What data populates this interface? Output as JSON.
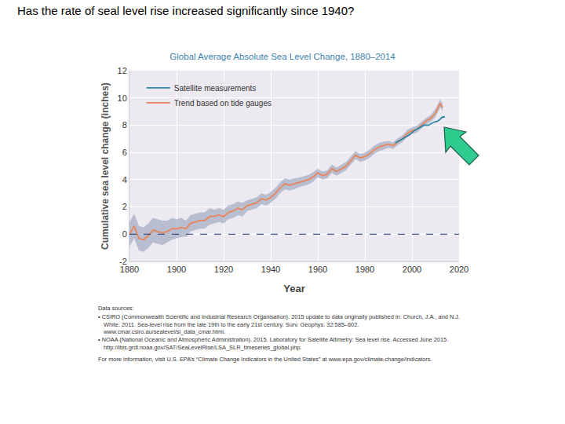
{
  "slide_title": "Has the rate of seal level rise increased significantly since 1940?",
  "chart_data": {
    "type": "line",
    "title": "Global Average Absolute Sea Level Change, 1880–2014",
    "x_label": "Year",
    "y_label": "Cumulative sea level change (inches)",
    "xlim": [
      1880,
      2020
    ],
    "xticks": [
      1880,
      1900,
      1920,
      1940,
      1960,
      1980,
      2000,
      2020
    ],
    "ylim": [
      -2,
      12
    ],
    "yticks": [
      -2,
      0,
      2,
      4,
      6,
      8,
      10,
      12
    ],
    "grid": true,
    "legend": "top left",
    "baseline": 0,
    "series": [
      {
        "name": "Trend based on tide gauges",
        "color": "#e8845a",
        "x": [
          1880,
          1882,
          1884,
          1886,
          1888,
          1890,
          1892,
          1894,
          1896,
          1898,
          1900,
          1902,
          1904,
          1906,
          1908,
          1910,
          1912,
          1914,
          1916,
          1918,
          1920,
          1922,
          1924,
          1926,
          1928,
          1930,
          1932,
          1934,
          1936,
          1938,
          1940,
          1942,
          1944,
          1946,
          1948,
          1950,
          1952,
          1954,
          1956,
          1958,
          1960,
          1962,
          1964,
          1966,
          1968,
          1970,
          1972,
          1974,
          1976,
          1978,
          1980,
          1982,
          1984,
          1986,
          1988,
          1990,
          1992,
          1994,
          1996,
          1998,
          2000,
          2002,
          2004,
          2006,
          2008,
          2010,
          2012,
          2013
        ],
        "values": [
          0.0,
          0.6,
          -0.3,
          -0.4,
          -0.1,
          0.3,
          0.2,
          0.1,
          0.2,
          0.4,
          0.4,
          0.5,
          0.4,
          0.8,
          0.9,
          1.0,
          1.0,
          1.3,
          1.3,
          1.4,
          1.3,
          1.6,
          1.7,
          1.9,
          1.8,
          2.1,
          2.2,
          2.3,
          2.6,
          2.5,
          2.7,
          3.0,
          3.4,
          3.7,
          3.6,
          3.7,
          3.8,
          3.9,
          4.0,
          4.2,
          4.5,
          4.3,
          4.4,
          4.8,
          4.6,
          4.8,
          5.0,
          5.4,
          5.8,
          5.6,
          5.7,
          5.9,
          6.2,
          6.4,
          6.5,
          6.6,
          6.5,
          6.8,
          7.0,
          7.4,
          7.6,
          7.7,
          8.0,
          8.3,
          8.5,
          8.9,
          9.6,
          9.3
        ],
        "uncertainty": [
          0.9,
          0.9,
          0.9,
          0.9,
          0.9,
          0.9,
          0.9,
          0.9,
          0.8,
          0.8,
          0.7,
          0.7,
          0.6,
          0.6,
          0.6,
          0.6,
          0.6,
          0.6,
          0.5,
          0.5,
          0.5,
          0.5,
          0.5,
          0.5,
          0.5,
          0.4,
          0.4,
          0.4,
          0.4,
          0.4,
          0.4,
          0.4,
          0.4,
          0.4,
          0.4,
          0.4,
          0.35,
          0.35,
          0.35,
          0.35,
          0.3,
          0.3,
          0.3,
          0.3,
          0.3,
          0.3,
          0.3,
          0.3,
          0.3,
          0.3,
          0.3,
          0.3,
          0.3,
          0.3,
          0.3,
          0.25,
          0.25,
          0.25,
          0.25,
          0.25,
          0.25,
          0.25,
          0.25,
          0.25,
          0.25,
          0.3,
          0.3,
          0.3
        ]
      },
      {
        "name": "Satellite measurements",
        "color": "#2f86a6",
        "x": [
          1993,
          1995,
          1997,
          1999,
          2001,
          2003,
          2005,
          2007,
          2009,
          2011,
          2013,
          2014
        ],
        "values": [
          6.7,
          6.9,
          7.1,
          7.3,
          7.6,
          7.8,
          8.0,
          8.0,
          8.2,
          8.3,
          8.6,
          8.6
        ]
      }
    ]
  },
  "data_sources": {
    "heading": "Data sources:",
    "items": [
      "• CSIRO (Commonwealth Scientific and Industrial Research Organisation). 2015 update to data originally published in: Church, J.A., and N.J. White. 2011. Sea-level rise from the late 19th to the early 21st century. Surv. Geophys. 32:585–602. www.cmar.csiro.au/sealevel/sl_data_cmar.html.",
      "• NOAA (National Oceanic and Atmospheric Administration). 2015. Laboratory for Satellite Altimetry: Sea level rise. Accessed June 2015. http://ibis.grdl.noaa.gov/SAT/SeaLevelRise/LSA_SLR_timeseries_global.php."
    ],
    "note": "For more information, visit U.S. EPA’s “Climate Change Indicators in the United States” at www.epa.gov/climate-change/indicators."
  }
}
